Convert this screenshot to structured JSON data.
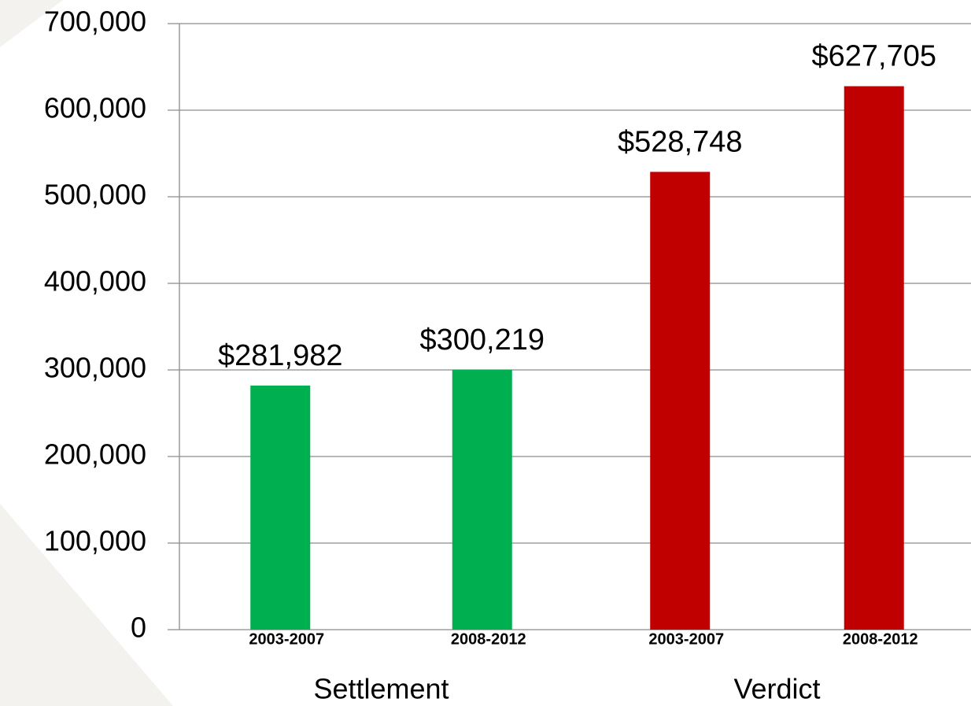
{
  "chart_data": {
    "type": "bar",
    "groups": [
      {
        "name": "Settlement",
        "color": "#00b050",
        "categories": [
          "2003-2007",
          "2008-2012"
        ],
        "values": [
          281982,
          300219
        ],
        "value_labels": [
          "$281,982",
          "$300,219"
        ]
      },
      {
        "name": "Verdict",
        "color": "#c00000",
        "categories": [
          "2003-2007",
          "2008-2012"
        ],
        "values": [
          528748,
          627705
        ],
        "value_labels": [
          "$528,748",
          "$627,705"
        ]
      }
    ],
    "ylim": [
      0,
      700000
    ],
    "yticks": [
      0,
      {
        "value": 100000,
        "label": "100,000"
      },
      {
        "value": 200000,
        "label": "200,000"
      },
      {
        "value": 300000,
        "label": "300,000"
      },
      {
        "value": 400000,
        "label": "400,000"
      },
      {
        "value": 500000,
        "label": "500,000"
      },
      {
        "value": 600000,
        "label": "600,000"
      },
      {
        "value": 700000,
        "label": "700,000"
      }
    ],
    "grid": true
  }
}
